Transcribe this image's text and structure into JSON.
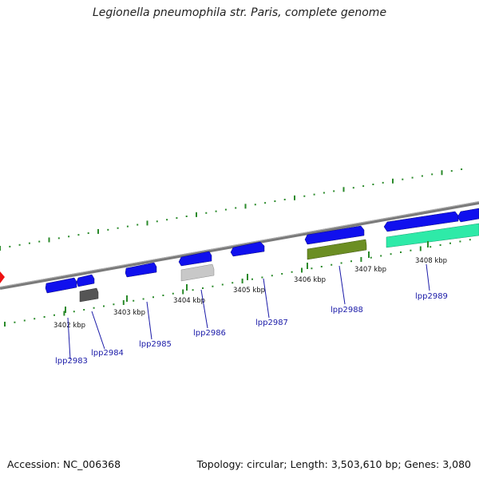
{
  "title": "Legionella pneumophila str. Paris, complete genome",
  "footer": {
    "accession": "Accession: NC_006368",
    "summary": "Topology: circular; Length: 3,503,610 bp; Genes: 3,080"
  },
  "colors": {
    "backbone": "#8c8c8c",
    "forward_gene": "#1010ee",
    "gc_dots": "#2a8a2a",
    "label": "#1a1aa8",
    "dark_gray": "#555555",
    "light_gray": "#c8c8c8",
    "olive": "#6b8e23",
    "aqua": "#2eeaa8",
    "red": "#ee1111"
  },
  "ticks": [
    {
      "label": "3402 kbp"
    },
    {
      "label": "3403 kbp"
    },
    {
      "label": "3404 kbp"
    },
    {
      "label": "3405 kbp"
    },
    {
      "label": "3406 kbp"
    },
    {
      "label": "3407 kbp"
    },
    {
      "label": "3408 kbp"
    }
  ],
  "genes": [
    {
      "label": "lpp2983"
    },
    {
      "label": "lpp2984"
    },
    {
      "label": "lpp2985"
    },
    {
      "label": "lpp2986"
    },
    {
      "label": "lpp2987"
    },
    {
      "label": "lpp2988"
    },
    {
      "label": "lpp2989"
    }
  ]
}
